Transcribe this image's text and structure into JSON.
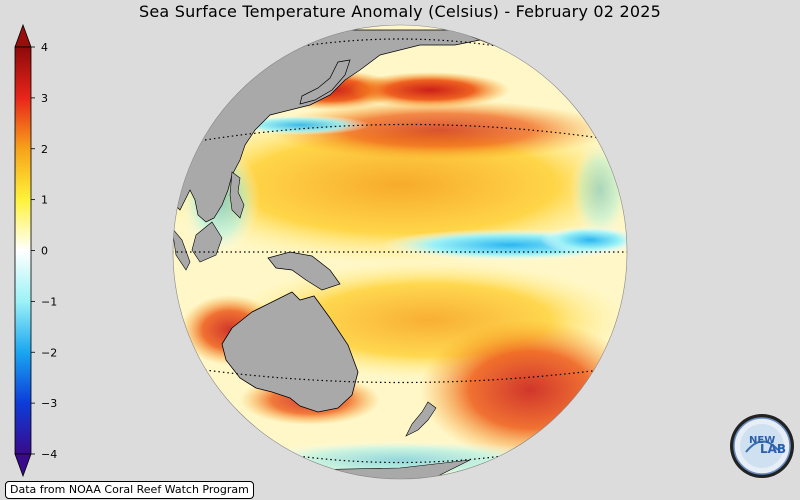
{
  "title": "Sea Surface Temperature Anomaly (Celsius) - February 02 2025",
  "colorbar": {
    "ticks": [
      4,
      3,
      2,
      1,
      0,
      -1,
      -2,
      -3,
      -4
    ],
    "tick_labels": [
      "4",
      "3",
      "2",
      "1",
      "0",
      "−1",
      "−2",
      "−3",
      "−4"
    ],
    "min": -4,
    "max": 4,
    "extend": "both",
    "stops": [
      "#3a0a8c",
      "#0c3cd8",
      "#1aa6f0",
      "#9cf2f6",
      "#ffffff",
      "#fff23a",
      "#f7a21a",
      "#e8251a",
      "#8c0a0a"
    ]
  },
  "map": {
    "projection": "orthographic",
    "center": "Western Pacific",
    "land_color": "#a9a9a9",
    "ocean_background": "#ffffff"
  },
  "credit": "Data from NOAA Coral Reef Watch Program",
  "logo": {
    "text_left": "NEW",
    "text_right": "LAB",
    "icon": "nexlab-logo-icon"
  }
}
